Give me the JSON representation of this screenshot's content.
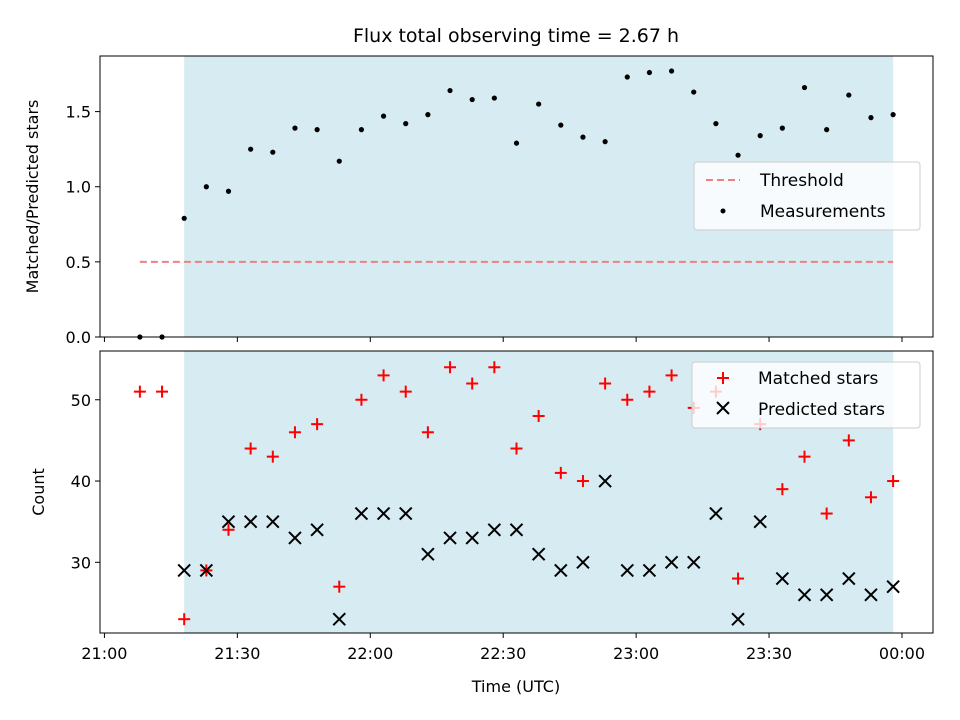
{
  "chart_data": [
    {
      "type": "scatter",
      "title": "Flux total observing time = 2.67 h",
      "ylabel": "Matched/Predicted stars",
      "xlim": [
        "20:59",
        "00:07"
      ],
      "ylim": [
        0,
        1.87
      ],
      "yticks": [
        "0.0",
        "0.5",
        "1.0",
        "1.5"
      ],
      "observing_window": {
        "start": "21:18",
        "end": "23:58"
      },
      "observing_window_color": "#add8e6",
      "legend_position": "center-right",
      "series": [
        {
          "name": "Threshold",
          "style": "dashed-line",
          "color": "#f08080",
          "x": [
            "21:08",
            "23:58"
          ],
          "y": [
            0.5,
            0.5
          ]
        },
        {
          "name": "Measurements",
          "style": "dot",
          "color": "#000000",
          "x": [
            "21:08",
            "21:13",
            "21:18",
            "21:23",
            "21:28",
            "21:33",
            "21:38",
            "21:43",
            "21:48",
            "21:53",
            "21:58",
            "22:03",
            "22:08",
            "22:13",
            "22:18",
            "22:23",
            "22:28",
            "22:33",
            "22:38",
            "22:43",
            "22:48",
            "22:53",
            "22:58",
            "23:03",
            "23:08",
            "23:13",
            "23:18",
            "23:23",
            "23:28",
            "23:33",
            "23:38",
            "23:43",
            "23:48",
            "23:53",
            "23:58"
          ],
          "y": [
            0.0,
            0.0,
            0.79,
            1.0,
            0.97,
            1.25,
            1.23,
            1.39,
            1.38,
            1.17,
            1.38,
            1.47,
            1.42,
            1.48,
            1.64,
            1.58,
            1.59,
            1.29,
            1.55,
            1.41,
            1.33,
            1.3,
            1.73,
            1.76,
            1.77,
            1.63,
            1.42,
            1.21,
            1.34,
            1.39,
            1.66,
            1.38,
            1.61,
            1.46,
            1.48
          ]
        }
      ]
    },
    {
      "type": "scatter",
      "xlabel": "Time (UTC)",
      "ylabel": "Count",
      "xlim": [
        "20:59",
        "00:07"
      ],
      "ylim": [
        21.3,
        56.0
      ],
      "yticks": [
        "30",
        "40",
        "50"
      ],
      "xticks": [
        "21:00",
        "21:30",
        "22:00",
        "22:30",
        "23:00",
        "23:30",
        "00:00"
      ],
      "observing_window": {
        "start": "21:18",
        "end": "23:58"
      },
      "observing_window_color": "#add8e6",
      "legend_position": "top-right",
      "series": [
        {
          "name": "Matched stars",
          "style": "plus",
          "color": "#ff0000",
          "x": [
            "21:08",
            "21:13",
            "21:18",
            "21:23",
            "21:28",
            "21:33",
            "21:38",
            "21:43",
            "21:48",
            "21:53",
            "21:58",
            "22:03",
            "22:08",
            "22:13",
            "22:18",
            "22:23",
            "22:28",
            "22:33",
            "22:38",
            "22:43",
            "22:48",
            "22:53",
            "22:58",
            "23:03",
            "23:08",
            "23:13",
            "23:18",
            "23:23",
            "23:28",
            "23:33",
            "23:38",
            "23:43",
            "23:48",
            "23:53",
            "23:58"
          ],
          "y": [
            51,
            51,
            23,
            29,
            34,
            44,
            43,
            46,
            47,
            27,
            50,
            53,
            51,
            46,
            54,
            52,
            54,
            44,
            48,
            41,
            40,
            52,
            50,
            51,
            53,
            49,
            51,
            28,
            47,
            39,
            43,
            36,
            45,
            38,
            40
          ]
        },
        {
          "name": "Predicted stars",
          "style": "x",
          "color": "#000000",
          "x": [
            "21:18",
            "21:23",
            "21:28",
            "21:33",
            "21:38",
            "21:43",
            "21:48",
            "21:53",
            "21:58",
            "22:03",
            "22:08",
            "22:13",
            "22:18",
            "22:23",
            "22:28",
            "22:33",
            "22:38",
            "22:43",
            "22:48",
            "22:53",
            "22:58",
            "23:03",
            "23:08",
            "23:13",
            "23:18",
            "23:23",
            "23:28",
            "23:33",
            "23:38",
            "23:43",
            "23:48",
            "23:53",
            "23:58"
          ],
          "y": [
            29,
            29,
            35,
            35,
            35,
            33,
            34,
            23,
            36,
            36,
            36,
            31,
            33,
            33,
            34,
            34,
            31,
            29,
            30,
            40,
            29,
            29,
            30,
            30,
            36,
            23,
            35,
            28,
            26,
            26,
            28,
            26,
            27
          ]
        }
      ]
    }
  ]
}
